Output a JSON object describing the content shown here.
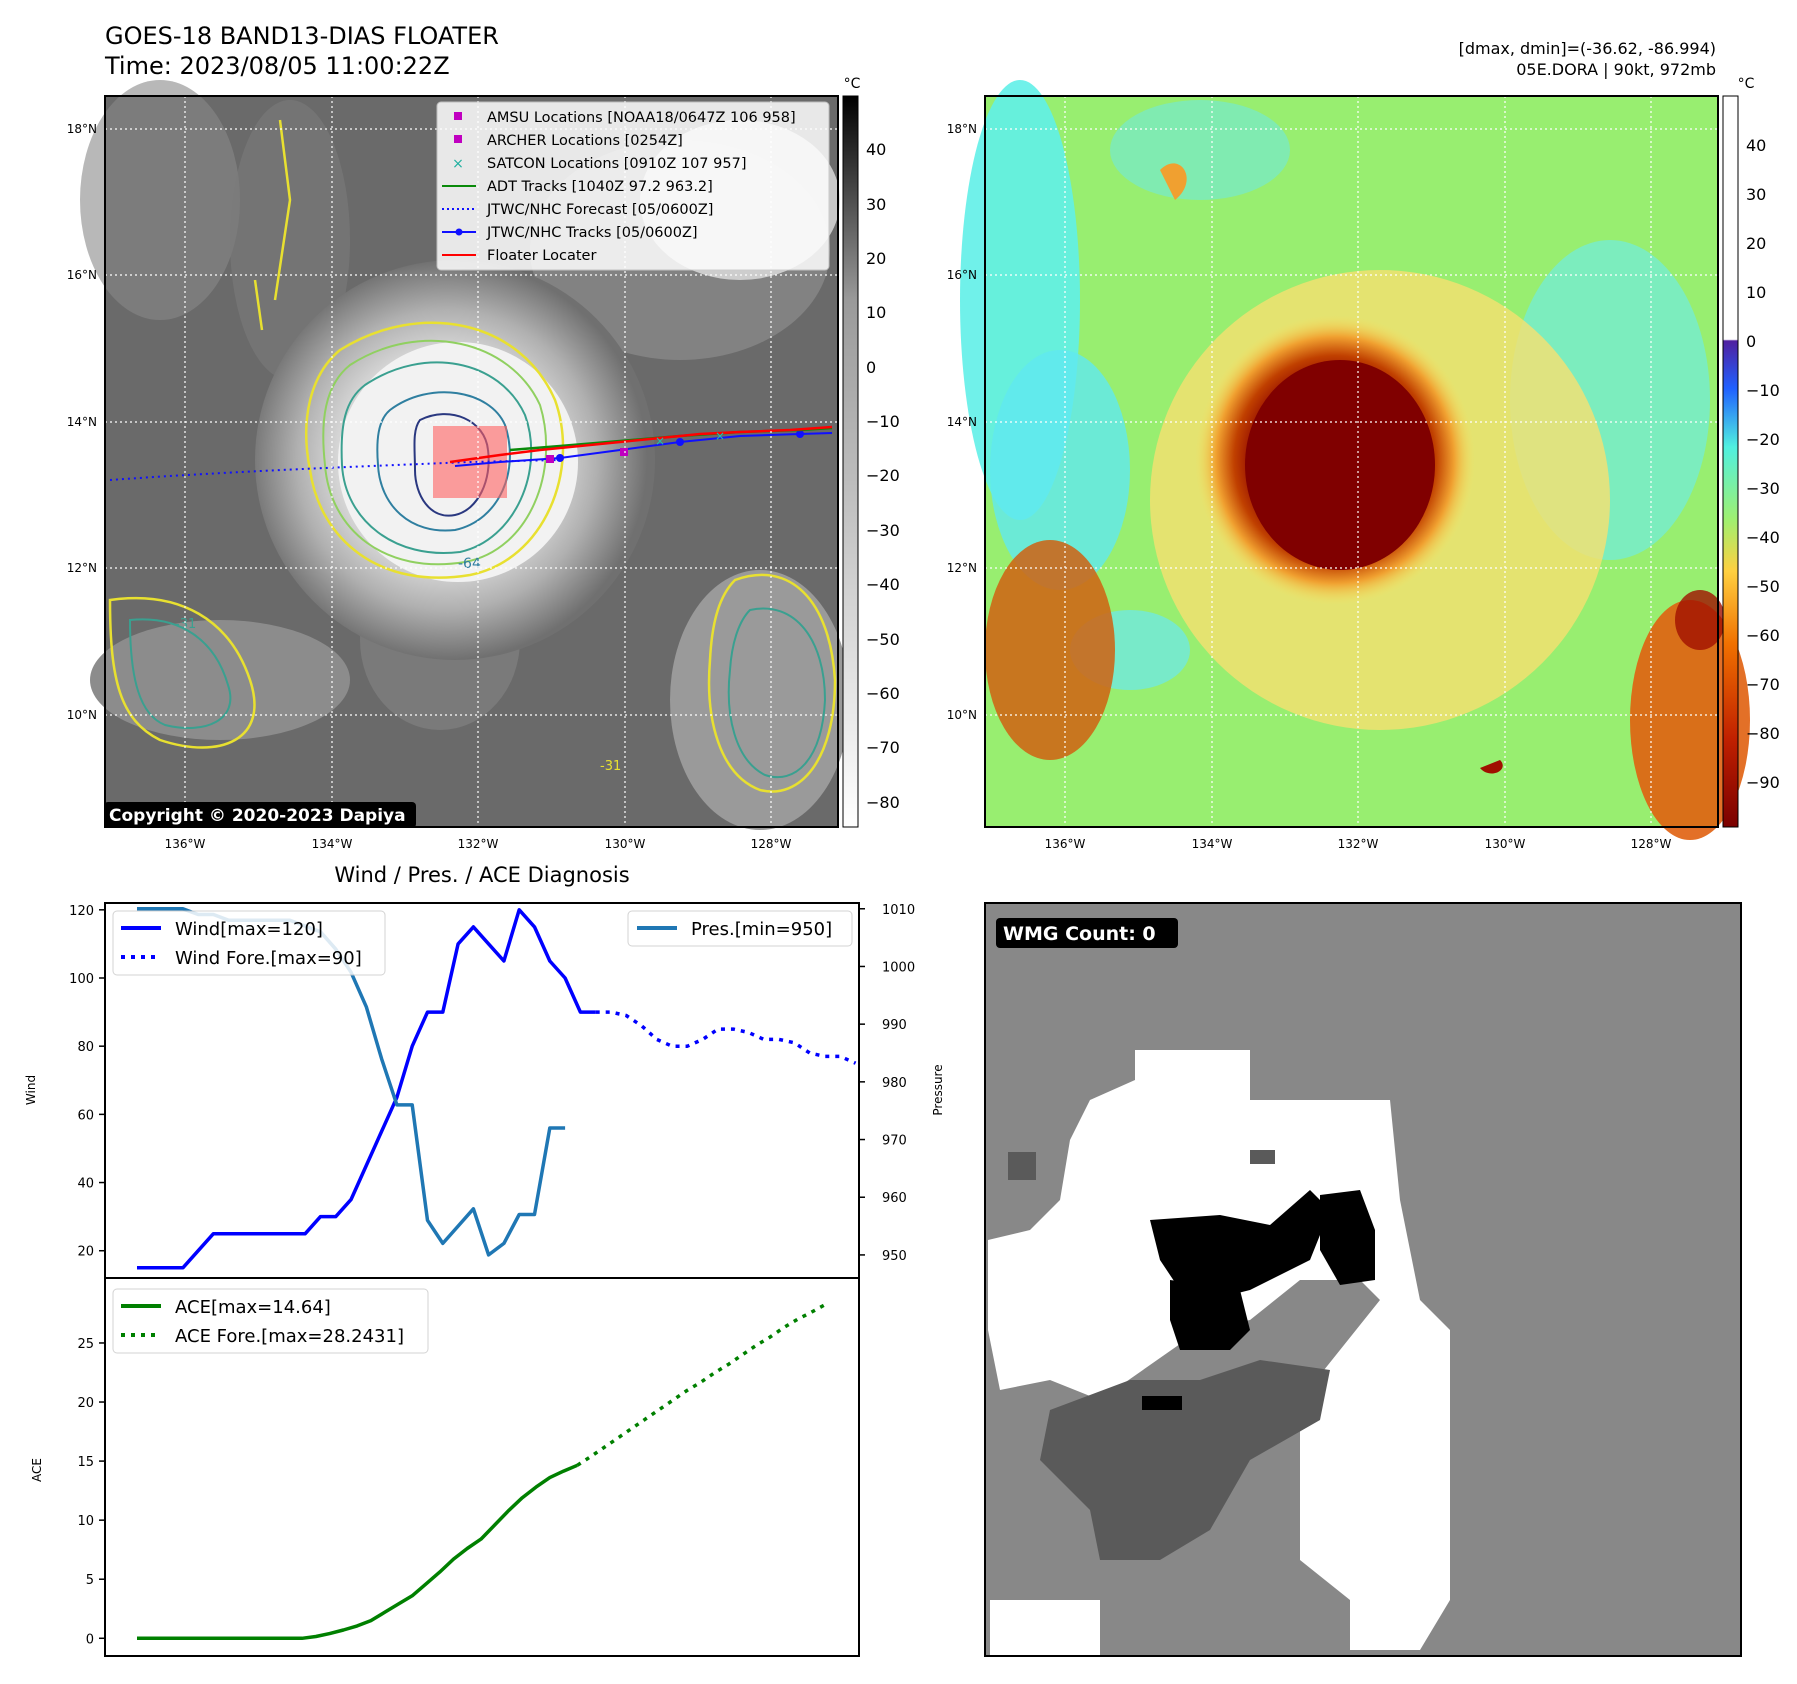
{
  "header": {
    "title": "GOES-18 BAND13-DIAS FLOATER",
    "time": "Time: 2023/08/05 11:00:22Z",
    "dminmax": "[dmax, dmin]=(-36.62, -86.994)",
    "storm": "05E.DORA | 90kt, 972mb"
  },
  "copyright": "Copyright © 2020-2023 Dapiya",
  "map": {
    "lat_labels": [
      "18°N",
      "16°N",
      "14°N",
      "12°N",
      "10°N"
    ],
    "lon_labels": [
      "136°W",
      "134°W",
      "132°W",
      "130°W",
      "128°W"
    ],
    "lat_values": [
      18,
      16,
      14,
      12,
      10
    ],
    "lon_values": [
      -136,
      -134,
      -132,
      -130,
      -128
    ],
    "lat_range": [
      8.45,
      18.45
    ],
    "lon_range": [
      -137.1,
      -127.1
    ],
    "contour_labels": [
      "-64",
      "-31",
      "-31"
    ],
    "legend": [
      "AMSU Locations [NOAA18/0647Z 106 958]",
      "ARCHER Locations [0254Z]",
      "SATCON Locations [0910Z 107 957]",
      "ADT Tracks [1040Z 97.2 963.2]",
      "JTWC/NHC Forecast [05/0600Z]",
      "JTWC/NHC Tracks [05/0600Z]",
      "Floater Locater"
    ]
  },
  "colorbar_left": {
    "unit": "°C",
    "ticks": [
      "40",
      "30",
      "20",
      "10",
      "0",
      "−10",
      "−20",
      "−30",
      "−40",
      "−50",
      "−60",
      "−70",
      "−80"
    ]
  },
  "colorbar_right": {
    "unit": "°C",
    "ticks": [
      "40",
      "30",
      "20",
      "10",
      "0",
      "−10",
      "−20",
      "−30",
      "−40",
      "−50",
      "−60",
      "−70",
      "−80",
      "−90"
    ]
  },
  "diagnosis": {
    "title": "Wind / Pres. / ACE Diagnosis"
  },
  "wmg": {
    "label": "WMG Count: 0"
  },
  "chart_data": [
    {
      "type": "line",
      "title": "Wind / Pres. / ACE Diagnosis",
      "ylabel": "Wind",
      "ylabel_right": "Pressure",
      "ylim": [
        12,
        122
      ],
      "ylim_right": [
        946,
        1011
      ],
      "yticks": [
        20,
        40,
        60,
        80,
        100,
        120
      ],
      "yticks_right": [
        950,
        960,
        970,
        980,
        990,
        1000,
        1010
      ],
      "series": [
        {
          "name": "Wind[max=120]",
          "axis": "left",
          "style": "solid",
          "color": "#0000ff",
          "values": [
            15,
            15,
            15,
            15,
            20,
            25,
            25,
            25,
            25,
            25,
            25,
            25,
            30,
            30,
            35,
            45,
            55,
            65,
            80,
            90,
            90,
            110,
            115,
            110,
            105,
            120,
            115,
            105,
            100,
            90,
            90
          ]
        },
        {
          "name": "Wind Fore.[max=90]",
          "axis": "left",
          "style": "dotted",
          "color": "#0000ff",
          "values": [
            90,
            90,
            89,
            86,
            82,
            80,
            80,
            82,
            85,
            85,
            84,
            82,
            82,
            81,
            78,
            77,
            77,
            75
          ]
        },
        {
          "name": "Pres.[min=950]",
          "axis": "right",
          "style": "solid",
          "color": "#1f77b4",
          "values": [
            1010,
            1010,
            1010,
            1010,
            1009,
            1009,
            1008,
            1008,
            1008,
            1008,
            1008,
            1007,
            1006,
            1003,
            999,
            993,
            984,
            976,
            976,
            956,
            952,
            955,
            958,
            950,
            952,
            957,
            957,
            972,
            972
          ]
        }
      ],
      "legend_labels": [
        "Wind[max=120]",
        "Wind Fore.[max=90]",
        "Pres.[min=950]"
      ]
    },
    {
      "type": "line",
      "ylabel": "ACE",
      "ylim": [
        -1.5,
        30.5
      ],
      "yticks": [
        0,
        5,
        10,
        15,
        20,
        25
      ],
      "series": [
        {
          "name": "ACE[max=14.64]",
          "style": "solid",
          "color": "#008000",
          "values": [
            0,
            0,
            0,
            0,
            0,
            0,
            0,
            0,
            0,
            0,
            0,
            0,
            0,
            0.15,
            0.4,
            0.7,
            1.05,
            1.5,
            2.2,
            2.9,
            3.6,
            4.6,
            5.6,
            6.7,
            7.6,
            8.4,
            9.6,
            10.8,
            11.9,
            12.8,
            13.6,
            14.15,
            14.64
          ]
        },
        {
          "name": "ACE Fore.[max=28.2431]",
          "style": "dotted",
          "color": "#008000",
          "values": [
            14.64,
            15.4,
            16.2,
            17.0,
            17.8,
            18.6,
            19.4,
            20.2,
            21.0,
            21.7,
            22.5,
            23.2,
            24.0,
            24.8,
            25.5,
            26.3,
            27.0,
            27.6,
            28.2431
          ]
        }
      ],
      "legend_labels": [
        "ACE[max=14.64]",
        "ACE Fore.[max=28.2431]"
      ]
    }
  ]
}
